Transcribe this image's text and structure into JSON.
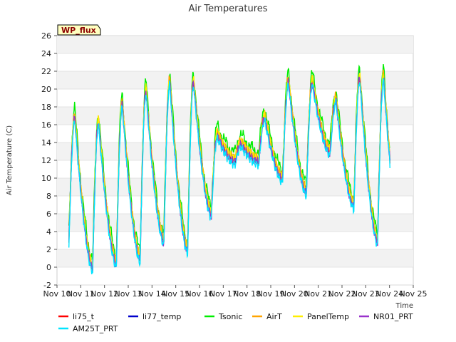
{
  "chart_data": {
    "type": "line",
    "title": "Air Temperatures",
    "xlabel": "Time",
    "ylabel": "Air Temperature (C)",
    "badge": "WP_flux",
    "x_ticks": [
      "Nov 10",
      "Nov 11",
      "Nov 12",
      "Nov 13",
      "Nov 14",
      "Nov 15",
      "Nov 16",
      "Nov 17",
      "Nov 18",
      "Nov 19",
      "Nov 20",
      "Nov 21",
      "Nov 22",
      "Nov 23",
      "Nov 24",
      "Nov 25"
    ],
    "xlim": [
      10,
      25
    ],
    "ylim": [
      -2,
      26
    ],
    "y_ticks": [
      -2,
      0,
      2,
      4,
      6,
      8,
      10,
      12,
      14,
      16,
      18,
      20,
      22,
      24,
      26
    ],
    "grid": true,
    "legend_position": "bottom",
    "series": [
      {
        "name": "li75_t",
        "color": "#ff0000",
        "offset": 0.0
      },
      {
        "name": "li77_temp",
        "color": "#0000cc",
        "offset": 0.1
      },
      {
        "name": "Tsonic",
        "color": "#00ee00",
        "offset": 0.9
      },
      {
        "name": "AirT",
        "color": "#ffa500",
        "offset": 0.3
      },
      {
        "name": "PanelTemp",
        "color": "#ffee00",
        "offset": 0.2
      },
      {
        "name": "NR01_PRT",
        "color": "#9933cc",
        "offset": -0.2
      },
      {
        "name": "AM25T_PRT",
        "color": "#00e5ff",
        "offset": -0.5
      }
    ],
    "daily_pattern": {
      "day_start": [
        10.5,
        11.5,
        12.5,
        13.5,
        14.5,
        15.5,
        16.5,
        17.5,
        18.5,
        19.5,
        20.5,
        21.5,
        22.5,
        23.5
      ],
      "min_temp": [
        3.0,
        0.0,
        0.5,
        1.0,
        3.0,
        2.0,
        6.0,
        12.0,
        12.0,
        10.0,
        8.5,
        13.0,
        7.0,
        3.0
      ],
      "max_temp": [
        17.0,
        16.5,
        18.5,
        20.0,
        21.0,
        21.0,
        15.0,
        14.0,
        17.0,
        21.0,
        21.0,
        19.0,
        21.5,
        21.5
      ]
    }
  }
}
